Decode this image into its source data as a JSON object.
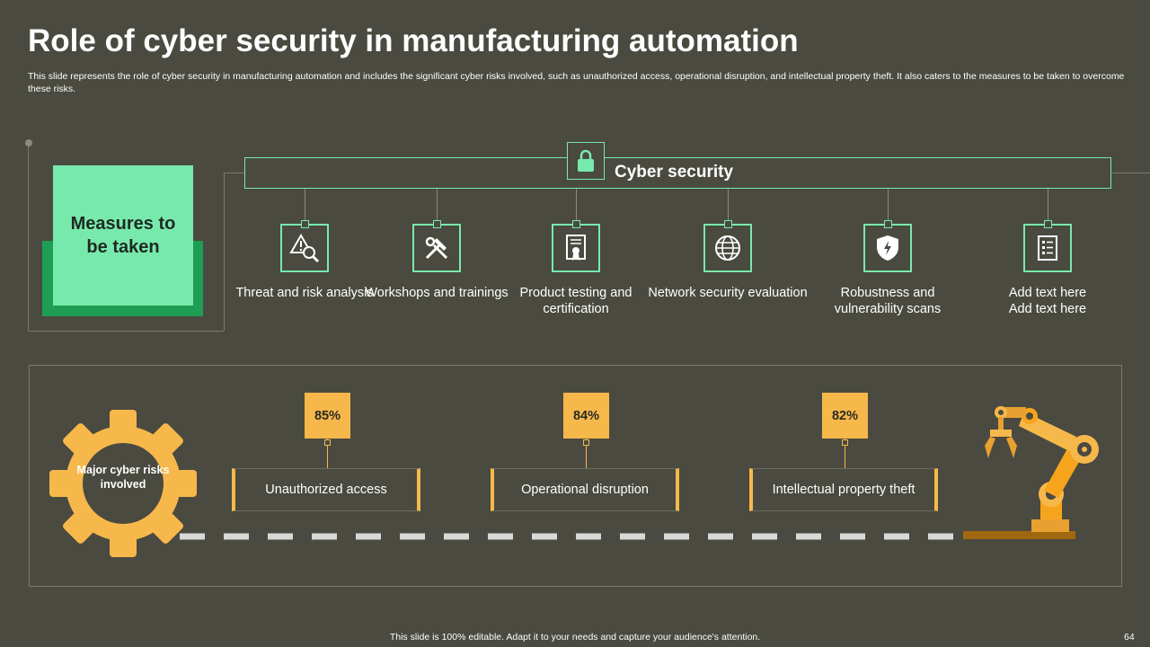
{
  "slide": {
    "title": "Role of cyber security in manufacturing automation",
    "subtitle": "This slide represents the role of cyber security in manufacturing automation and includes the significant cyber risks involved, such as unauthorized access, operational disruption, and intellectual property theft. It also caters to the measures to be taken to overcome these risks.",
    "footer": "This slide is 100% editable. Adapt it to your needs and capture your audience's attention.",
    "page_number": "64"
  },
  "measures": {
    "label": "Measures to be taken",
    "header": "Cyber security",
    "items": [
      {
        "label": "Threat and risk analysis",
        "icon": "threat-analysis-icon"
      },
      {
        "label": "Workshops and trainings",
        "icon": "tools-icon"
      },
      {
        "label": "Product testing and certification",
        "icon": "certificate-icon"
      },
      {
        "label": "Network security evaluation",
        "icon": "globe-network-icon"
      },
      {
        "label": "Robustness and vulnerability scans",
        "icon": "shield-icon"
      },
      {
        "label": "Add text here Add text here",
        "icon": "checklist-icon"
      }
    ]
  },
  "risks": {
    "label": "Major cyber risks involved",
    "items": [
      {
        "label": "Unauthorized access",
        "percent": "85%"
      },
      {
        "label": "Operational disruption",
        "percent": "84%"
      },
      {
        "label": "Intellectual property theft",
        "percent": "82%"
      }
    ]
  },
  "colors": {
    "background": "#4a4a40",
    "green_accent": "#78e9ac",
    "green_dark": "#1f9d55",
    "orange_accent": "#f7b84b"
  }
}
